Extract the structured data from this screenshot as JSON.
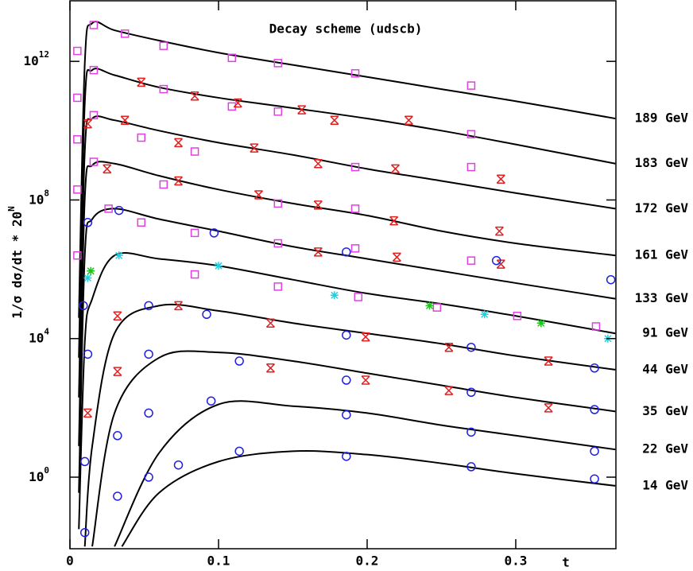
{
  "chart_data": {
    "type": "line",
    "title": "Decay scheme (udscb)",
    "xlabel": "t",
    "ylabel": {
      "text": "1/σ dσ/dt * 20",
      "sup": "N"
    },
    "xlim": [
      0,
      0.3674
    ],
    "ylim": [
      0.0086,
      56000000000000.0
    ],
    "log_y": true,
    "xticks": [
      0,
      0.1,
      0.2,
      0.3
    ],
    "yticks": [
      {
        "value": 1,
        "label": "10",
        "sup": "0"
      },
      {
        "value": 10000,
        "label": "10",
        "sup": "4"
      },
      {
        "value": 100000000,
        "label": "10",
        "sup": "8"
      },
      {
        "value": 1000000000000,
        "label": "10",
        "sup": "12"
      }
    ],
    "series": [
      {
        "name": "189 GeV",
        "type": "line",
        "color": "#000000",
        "x": [
          0.006,
          0.01,
          0.015,
          0.03,
          0.06,
          0.1,
          0.15,
          0.2,
          0.25,
          0.3,
          0.367
        ],
        "values": [
          39800.0,
          890000000000.0,
          12600000000000.0,
          7900000000000.0,
          3980000000000.0,
          1780000000000.0,
          790000000000.0,
          355000000000.0,
          158000000000.0,
          71000000000.0,
          22400000000.0
        ]
      },
      {
        "name": "183 GeV",
        "type": "line",
        "color": "#000000",
        "x": [
          0.006,
          0.01,
          0.015,
          0.03,
          0.06,
          0.1,
          0.15,
          0.2,
          0.25,
          0.3,
          0.367
        ],
        "values": [
          2800,
          63000000000.0,
          560000000000.0,
          400000000000.0,
          178000000000.0,
          89000000000.0,
          45000000000.0,
          22400000000.0,
          10000000000.0,
          4000000000.0,
          1120000000.0
        ]
      },
      {
        "name": "172 GeV",
        "type": "line",
        "color": "#000000",
        "x": [
          0.006,
          0.01,
          0.015,
          0.03,
          0.06,
          0.1,
          0.15,
          0.2,
          0.25,
          0.3,
          0.367
        ],
        "values": [
          200,
          2500000000.0,
          22400000000.0,
          20000000000.0,
          10000000000.0,
          4500000000.0,
          2000000000.0,
          790000000.0,
          355000000.0,
          158000000.0,
          56000000.0
        ]
      },
      {
        "name": "161 GeV",
        "type": "line",
        "color": "#000000",
        "x": [
          0.006,
          0.01,
          0.015,
          0.03,
          0.06,
          0.1,
          0.15,
          0.2,
          0.25,
          0.3,
          0.367
        ],
        "values": [
          7.9,
          112000000.0,
          1000000000.0,
          1120000000.0,
          500000000.0,
          200000000.0,
          79000000.0,
          35500000.0,
          12600000.0,
          5600000.0,
          2500000.0
        ]
      },
      {
        "name": "133 GeV",
        "type": "line",
        "color": "#000000",
        "x": [
          0.006,
          0.01,
          0.015,
          0.03,
          0.06,
          0.1,
          0.15,
          0.2,
          0.25,
          0.3,
          0.367
        ],
        "values": [
          0.355,
          2500000.0,
          28000000.0,
          56000000.0,
          28000000.0,
          12600000.0,
          4500000.0,
          2000000.0,
          890000.0,
          400000.0,
          141000.0
        ]
      },
      {
        "name": "91 GeV",
        "type": "line",
        "color": "#000000",
        "x": [
          0.006,
          0.01,
          0.015,
          0.03,
          0.06,
          0.1,
          0.15,
          0.2,
          0.25,
          0.3,
          0.367
        ],
        "values": [
          0.0316,
          7900,
          141000.0,
          2500000.0,
          2000000.0,
          1260000.0,
          500000.0,
          200000.0,
          100000.0,
          45000.0,
          14100.0
        ]
      },
      {
        "name": "44 GeV",
        "type": "line",
        "color": "#000000",
        "x": [
          0.01,
          0.015,
          0.03,
          0.06,
          0.1,
          0.15,
          0.2,
          0.25,
          0.3,
          0.367
        ],
        "values": [
          0.01,
          7.9,
          14100.0,
          89000.0,
          63000.0,
          28000.0,
          14100.0,
          7100,
          3160,
          1260
        ]
      },
      {
        "name": "35 GeV",
        "type": "line",
        "color": "#000000",
        "x": [
          0.015,
          0.03,
          0.06,
          0.1,
          0.15,
          0.2,
          0.25,
          0.3,
          0.367
        ],
        "values": [
          0.01,
          70.8,
          2800,
          4000,
          2240,
          1000,
          447,
          200,
          79
        ]
      },
      {
        "name": "22 GeV",
        "type": "line",
        "color": "#000000",
        "x": [
          0.03,
          0.06,
          0.1,
          0.15,
          0.2,
          0.25,
          0.3,
          0.367
        ],
        "values": [
          0.01,
          5,
          126,
          112,
          70.8,
          31.6,
          15.8,
          6.3
        ]
      },
      {
        "name": "14 GeV",
        "type": "line",
        "color": "#000000",
        "x": [
          0.035,
          0.06,
          0.1,
          0.15,
          0.2,
          0.25,
          0.3,
          0.367
        ],
        "values": [
          0.01,
          0.355,
          2.82,
          5.6,
          4.47,
          2.51,
          1.26,
          0.562
        ]
      },
      {
        "type": "scatter",
        "marker": "square",
        "color": "#e040e0",
        "x": [
          0.005,
          0.016,
          0.037,
          0.063,
          0.109,
          0.14,
          0.192,
          0.27,
          0.005,
          0.016,
          0.063,
          0.109,
          0.14,
          0.27,
          0.005,
          0.016,
          0.048,
          0.084,
          0.192,
          0.27,
          0.005,
          0.016,
          0.063,
          0.14,
          0.192,
          0.005,
          0.026,
          0.048,
          0.084,
          0.14,
          0.192,
          0.27,
          0.084,
          0.14,
          0.194,
          0.247,
          0.301,
          0.354
        ],
        "values": [
          2000000000000.0,
          11200000000000.0,
          6300000000000.0,
          2800000000000.0,
          1260000000000.0,
          890000000000.0,
          450000000000.0,
          200000000000.0,
          89000000000.0,
          560000000000.0,
          158000000000.0,
          50000000000.0,
          35500000000.0,
          7900000000.0,
          5600000000.0,
          28000000000.0,
          6300000000.0,
          2500000000.0,
          890000000.0,
          890000000.0,
          200000000.0,
          1260000000.0,
          280000000.0,
          79000000.0,
          56000000.0,
          2500000.0,
          56000000.0,
          22400000.0,
          11200000.0,
          5600000.0,
          4000000.0,
          1780000.0,
          710000.0,
          316000.0,
          158000.0,
          79000.0,
          45000.0,
          22400.0
        ]
      },
      {
        "type": "scatter",
        "marker": "cross",
        "color": "#e02020",
        "x": [
          0.012,
          0.037,
          0.048,
          0.084,
          0.113,
          0.156,
          0.178,
          0.228,
          0.025,
          0.073,
          0.127,
          0.167,
          0.218,
          0.289,
          0.073,
          0.124,
          0.167,
          0.219,
          0.29,
          0.167,
          0.22,
          0.29,
          0.032,
          0.073,
          0.135,
          0.199,
          0.255,
          0.322,
          0.032,
          0.135,
          0.199,
          0.255,
          0.322,
          0.012
        ],
        "values": [
          15800000000.0,
          20000000000.0,
          250000000000.0,
          100000000000.0,
          63000000000.0,
          40000000000.0,
          20000000000.0,
          20000000000.0,
          790000000.0,
          355000000.0,
          141000000.0,
          71000000.0,
          25000000.0,
          12600000.0,
          4500000000.0,
          3160000000.0,
          1120000000.0,
          790000000.0,
          400000000.0,
          3160000.0,
          2240000.0,
          1410000.0,
          45000.0,
          89000.0,
          28000.0,
          11200.0,
          5600,
          2240,
          1120,
          1410,
          631,
          316,
          100,
          70.8
        ]
      },
      {
        "type": "scatter",
        "marker": "circle",
        "color": "#2020e0",
        "x": [
          0.012,
          0.033,
          0.097,
          0.186,
          0.287,
          0.364,
          0.009,
          0.053,
          0.092,
          0.186,
          0.27,
          0.353,
          0.012,
          0.053,
          0.114,
          0.186,
          0.27,
          0.353,
          0.01,
          0.032,
          0.053,
          0.095,
          0.186,
          0.27,
          0.353,
          0.01,
          0.032,
          0.053,
          0.073,
          0.114,
          0.186,
          0.27,
          0.353
        ],
        "values": [
          22400000.0,
          50000000.0,
          11200000.0,
          3160000.0,
          1780000.0,
          500000.0,
          89000.0,
          89000.0,
          50000.0,
          12600.0,
          5600,
          1410,
          3550,
          3550,
          2240,
          631,
          282,
          89.1,
          2.82,
          15.8,
          70.8,
          158,
          63.1,
          20,
          5.62,
          0.0251,
          0.282,
          1,
          2.24,
          5.62,
          3.98,
          2,
          0.891
        ]
      },
      {
        "type": "scatter",
        "marker": "star",
        "color": "#20d0e0",
        "x": [
          0.012,
          0.033,
          0.1,
          0.178,
          0.279,
          0.362
        ],
        "values": [
          562000.0,
          2500000.0,
          1260000.0,
          178000.0,
          50000.0,
          10000.0
        ]
      },
      {
        "type": "scatter",
        "marker": "star",
        "color": "#20c020",
        "x": [
          0.014,
          0.242,
          0.317
        ],
        "values": [
          890000.0,
          89000.0,
          28000.0
        ]
      }
    ]
  }
}
